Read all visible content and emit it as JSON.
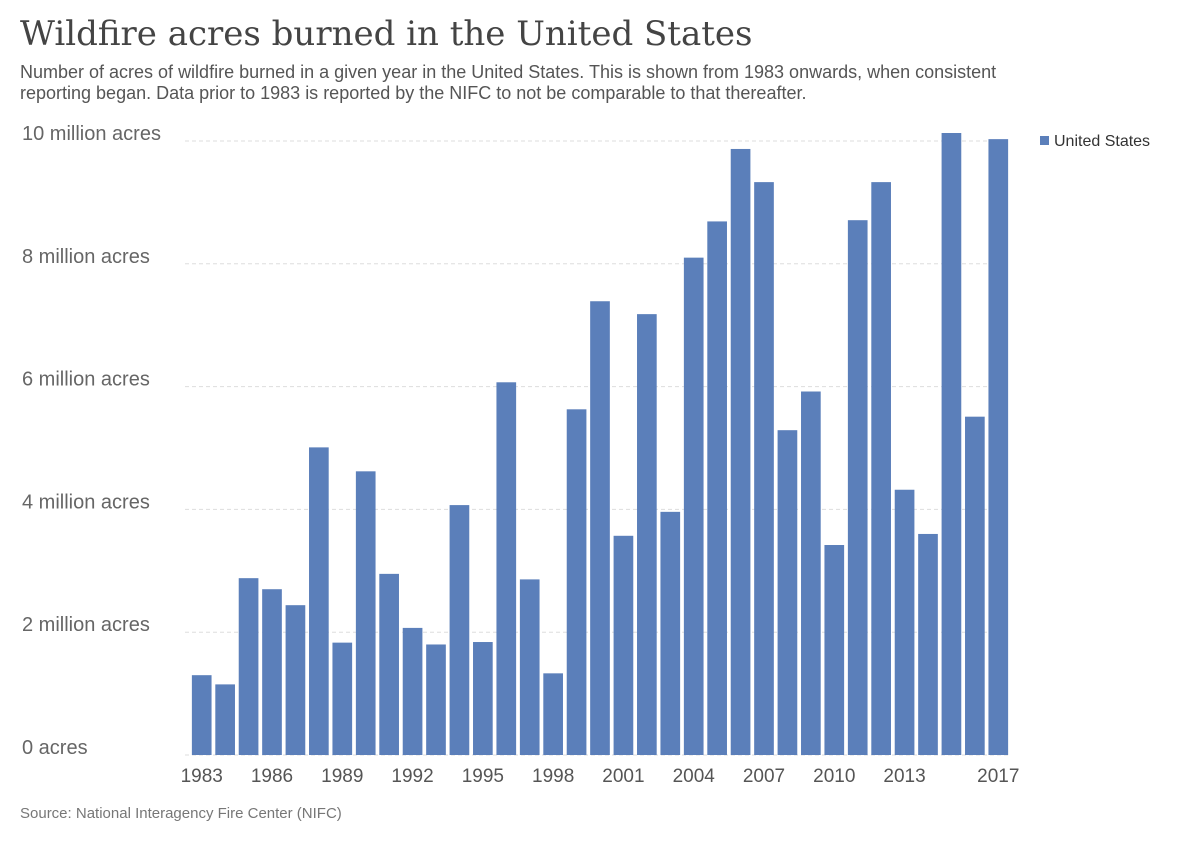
{
  "chart_data": {
    "type": "bar",
    "title": "Wildfire acres burned in the United States",
    "subtitle": "Number of acres of wildfire burned in a given year in the United States. This is shown from 1983 onwards, when consistent reporting began. Data prior to 1983 is reported by the NIFC to not be comparable to that thereafter.",
    "source": "Source: National Interagency Fire Center (NIFC)",
    "categories": [
      "1983",
      null,
      null,
      "1986",
      null,
      null,
      "1989",
      null,
      null,
      "1992",
      null,
      null,
      "1995",
      null,
      null,
      "1998",
      null,
      null,
      "2001",
      null,
      null,
      "2004",
      null,
      null,
      "2007",
      null,
      null,
      "2010",
      null,
      null,
      "2013",
      null,
      null,
      null,
      "2017"
    ],
    "series": [
      {
        "name": "United States",
        "color": "#5b7fba",
        "values": [
          1300000,
          1150000,
          2880000,
          2700000,
          2440000,
          5010000,
          1830000,
          4620000,
          2950000,
          2070000,
          1800000,
          4070000,
          1840000,
          6070000,
          2860000,
          1330000,
          5630000,
          7390000,
          3570000,
          7180000,
          3960000,
          8100000,
          8690000,
          9870000,
          9330000,
          5290000,
          5920000,
          3420000,
          8710000,
          9330000,
          4320000,
          3600000,
          10130000,
          5510000,
          10030000
        ]
      }
    ],
    "ylim": [
      0,
      10130000
    ],
    "yticks": [
      {
        "value": 0,
        "label": "0 acres"
      },
      {
        "value": 2000000,
        "label": "2 million acres"
      },
      {
        "value": 4000000,
        "label": "4 million acres"
      },
      {
        "value": 6000000,
        "label": "6 million acres"
      },
      {
        "value": 8000000,
        "label": "8 million acres"
      },
      {
        "value": 10000000,
        "label": "10 million acres"
      }
    ],
    "grid": true,
    "legend": "top-right"
  }
}
